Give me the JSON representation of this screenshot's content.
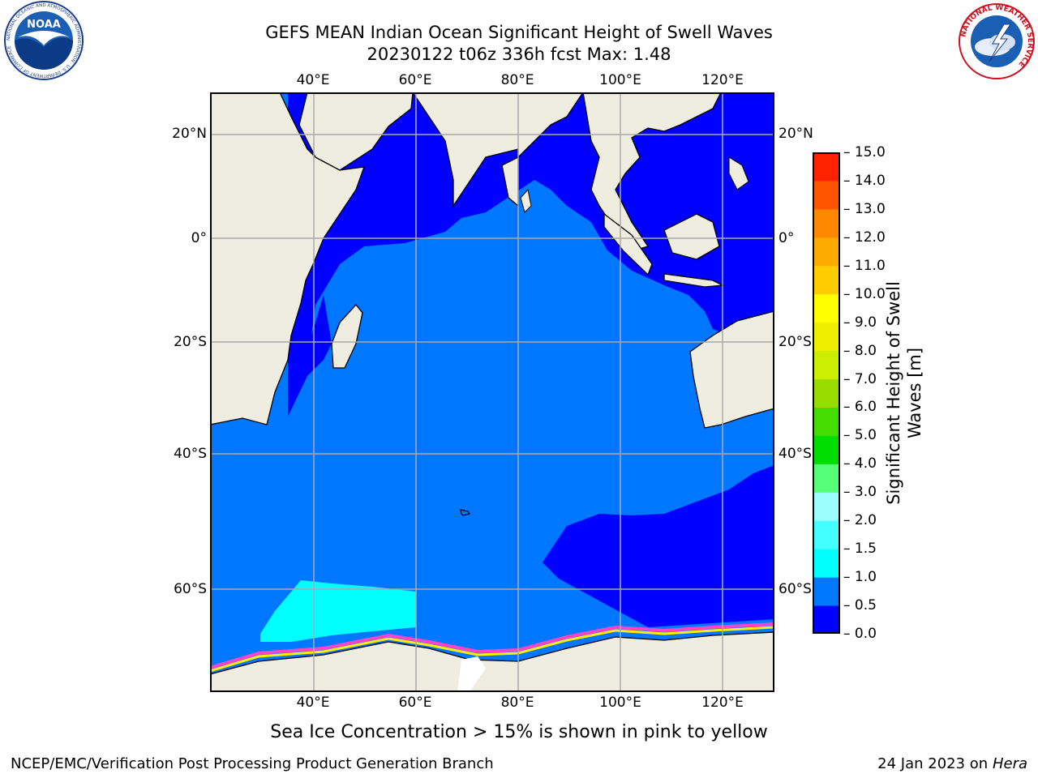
{
  "header": {
    "title_line1": "GEFS MEAN Indian Ocean Significant Height of Swell Waves",
    "title_line2": "20230122 t06z 336h fcst   Max: 1.48"
  },
  "logos": {
    "noaa_text": "NOAA",
    "noaa_ring": "NATIONAL OCEANIC AND ATMOSPHERIC ADMINISTRATION · U.S. DEPARTMENT OF COMMERCE",
    "nws_ring": "NATIONAL WEATHER SERVICE"
  },
  "map": {
    "lon_ticks": [
      "40°E",
      "60°E",
      "80°E",
      "100°E",
      "120°E"
    ],
    "lat_ticks_left": [
      "20°N",
      "0°",
      "20°S",
      "40°S",
      "60°S"
    ],
    "lat_ticks_right": [
      "20°N",
      "0°",
      "20°S",
      "40°S",
      "60°S"
    ],
    "lon_range": [
      20,
      130
    ],
    "lat_range": [
      -74,
      28
    ],
    "colors": {
      "land": "#eeede0",
      "swell_0_0p5": "#0000ff",
      "swell_0p5_1": "#0077ff",
      "swell_1_1p5": "#00ffff",
      "sea_ice_low": "#ff44cc",
      "sea_ice_high": "#ffee00",
      "gridline": "#aaaaaa"
    }
  },
  "colorbar": {
    "label": "Significant Height of Swell Waves [m]",
    "label_line1": "Significant Height of Swell",
    "label_line2": "Waves [m]",
    "tick_labels": [
      "15.0",
      "14.0",
      "13.0",
      "12.0",
      "11.0",
      "10.0",
      "9.0",
      "8.0",
      "7.0",
      "6.0",
      "5.0",
      "4.0",
      "3.0",
      "2.0",
      "1.5",
      "1.0",
      "0.5",
      "0.0"
    ],
    "colors_bottom_to_top": [
      "#0000ff",
      "#0077ff",
      "#00ffff",
      "#44ffff",
      "#99ffff",
      "#55ff77",
      "#00dd00",
      "#44dd00",
      "#99dd00",
      "#ccee00",
      "#eeee00",
      "#ffff00",
      "#ffcc00",
      "#ffaa00",
      "#ff8800",
      "#ff5500",
      "#ff2200"
    ]
  },
  "footer": {
    "note": "Sea Ice Concentration > 15% is shown in pink to yellow",
    "credit": "NCEP/EMC/Verification Post Processing Product Generation Branch",
    "date": "24 Jan 2023 on",
    "machine": "Hera"
  }
}
